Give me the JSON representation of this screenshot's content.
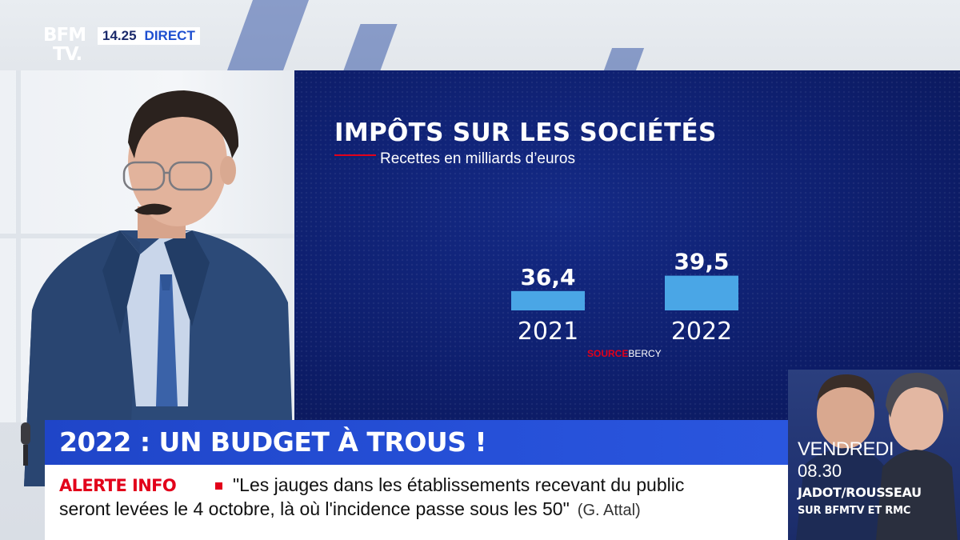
{
  "logo": {
    "line1": "BFM",
    "line2": "TV."
  },
  "clock": "14.25",
  "live_label": "DIRECT",
  "chart_data": {
    "type": "bar",
    "title": "IMPÔTS SUR LES SOCIÉTÉS",
    "subtitle": "Recettes en milliards d’euros",
    "categories": [
      "2021",
      "2022"
    ],
    "values": [
      36.4,
      39.5
    ],
    "value_labels": [
      "36,4",
      "39,5"
    ],
    "xlabel": "",
    "ylabel": "",
    "grid": false,
    "legend": "none",
    "source_label": "SOURCE",
    "source_value": "BERCY",
    "bar_color": "#4aa6e6"
  },
  "headline": "2022 : UN BUDGET À TROUS !",
  "ticker": {
    "label": "ALERTE INFO",
    "line1": "\"Les jauges dans les établissements recevant du public",
    "line2": "seront levées le 4 octobre, là où l'incidence passe sous les 50\"",
    "attribution": "(G. Attal)"
  },
  "promo": {
    "day": "VENDREDI",
    "time": "08.30",
    "names": "JADOT/ROUSSEAU",
    "channel": "SUR BFMTV ET RMC"
  },
  "colors": {
    "brand_blue": "#1f45c8",
    "alert_red": "#e2001a",
    "panel_navy": "#0e1f6e"
  }
}
